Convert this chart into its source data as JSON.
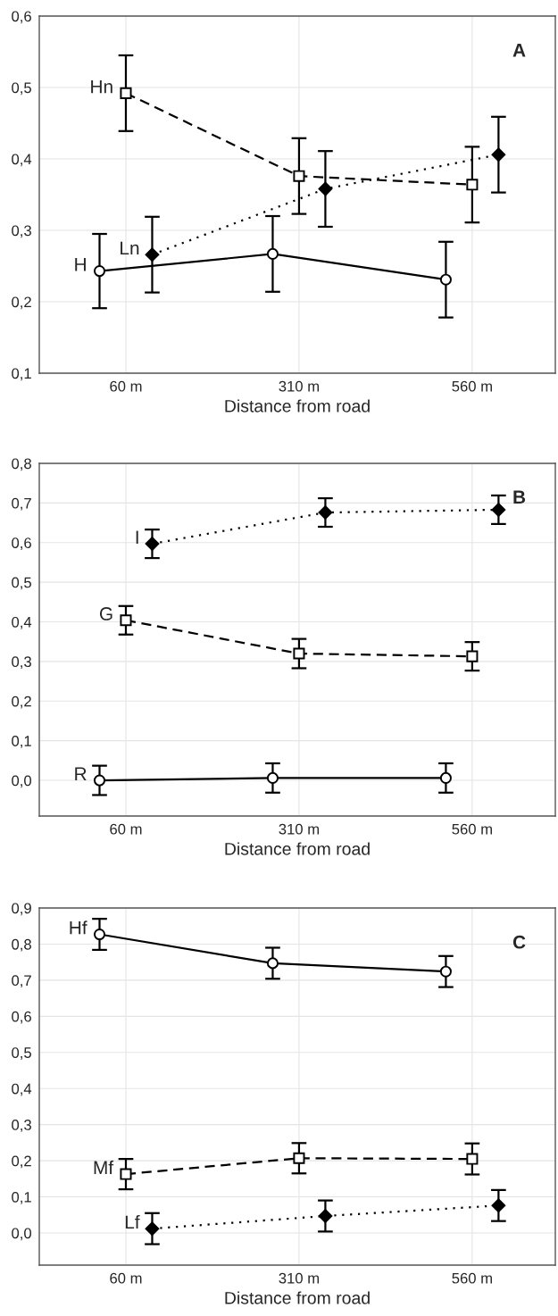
{
  "chart_data": [
    {
      "type": "line",
      "annotations": [
        "A"
      ],
      "xlabel": "Distance from road",
      "xlim": [
        -65,
        680
      ],
      "xticks": [
        {
          "value": 60,
          "label": "60 m"
        },
        {
          "value": 310,
          "label": "310 m"
        },
        {
          "value": 560,
          "label": "560 m"
        }
      ],
      "ylim": [
        0.1,
        0.6
      ],
      "yticks": [
        {
          "value": 0.1,
          "label": "0,1"
        },
        {
          "value": 0.2,
          "label": "0,2"
        },
        {
          "value": 0.3,
          "label": "0,3"
        },
        {
          "value": 0.4,
          "label": "0,4"
        },
        {
          "value": 0.5,
          "label": "0,5"
        },
        {
          "value": 0.6,
          "label": "0,6"
        }
      ],
      "grid": true,
      "series": [
        {
          "name": "H",
          "color": "#000000",
          "marker": "circle",
          "line_style": "solid",
          "x": [
            22,
            272,
            522
          ],
          "values": [
            0.243,
            0.267,
            0.231
          ],
          "errors": [
            0.052,
            0.053,
            0.053
          ]
        },
        {
          "name": "Hn",
          "color": "#000000",
          "marker": "square",
          "line_style": "dashed",
          "x": [
            60,
            310,
            560
          ],
          "values": [
            0.492,
            0.376,
            0.364
          ],
          "errors": [
            0.053,
            0.053,
            0.053
          ]
        },
        {
          "name": "Ln",
          "color": "#000000",
          "marker": "diamond",
          "line_style": "dotted",
          "x": [
            98,
            348,
            598
          ],
          "values": [
            0.266,
            0.358,
            0.406
          ],
          "errors": [
            0.053,
            0.053,
            0.053
          ]
        }
      ]
    },
    {
      "type": "line",
      "annotations": [
        "B"
      ],
      "xlabel": "Distance from road",
      "xlim": [
        -65,
        680
      ],
      "xticks": [
        {
          "value": 60,
          "label": "60 m"
        },
        {
          "value": 310,
          "label": "310 m"
        },
        {
          "value": 560,
          "label": "560 m"
        }
      ],
      "ylim": [
        -0.09,
        0.8
      ],
      "yticks": [
        {
          "value": 0.0,
          "label": "0,0"
        },
        {
          "value": 0.1,
          "label": "0,1"
        },
        {
          "value": 0.2,
          "label": "0,2"
        },
        {
          "value": 0.3,
          "label": "0,3"
        },
        {
          "value": 0.4,
          "label": "0,4"
        },
        {
          "value": 0.5,
          "label": "0,5"
        },
        {
          "value": 0.6,
          "label": "0,6"
        },
        {
          "value": 0.7,
          "label": "0,7"
        },
        {
          "value": 0.8,
          "label": "0,8"
        }
      ],
      "grid": true,
      "series": [
        {
          "name": "R",
          "color": "#000000",
          "marker": "circle",
          "line_style": "solid",
          "x": [
            22,
            272,
            522
          ],
          "values": [
            0.0,
            0.006,
            0.006
          ],
          "errors": [
            0.037,
            0.037,
            0.037
          ]
        },
        {
          "name": "G",
          "color": "#000000",
          "marker": "square",
          "line_style": "dashed",
          "x": [
            60,
            310,
            560
          ],
          "values": [
            0.404,
            0.32,
            0.313
          ],
          "errors": [
            0.036,
            0.037,
            0.036
          ]
        },
        {
          "name": "I",
          "color": "#000000",
          "marker": "diamond",
          "line_style": "dotted",
          "x": [
            98,
            348,
            598
          ],
          "values": [
            0.597,
            0.676,
            0.683
          ],
          "errors": [
            0.036,
            0.036,
            0.036
          ]
        }
      ]
    },
    {
      "type": "line",
      "annotations": [
        "C"
      ],
      "xlabel": "Distance from road",
      "xlim": [
        -65,
        680
      ],
      "xticks": [
        {
          "value": 60,
          "label": "60 m"
        },
        {
          "value": 310,
          "label": "310 m"
        },
        {
          "value": 560,
          "label": "560 m"
        }
      ],
      "ylim": [
        -0.089,
        0.9
      ],
      "yticks": [
        {
          "value": 0.0,
          "label": "0,0"
        },
        {
          "value": 0.1,
          "label": "0,1"
        },
        {
          "value": 0.2,
          "label": "0,2"
        },
        {
          "value": 0.3,
          "label": "0,3"
        },
        {
          "value": 0.4,
          "label": "0,4"
        },
        {
          "value": 0.5,
          "label": "0,5"
        },
        {
          "value": 0.6,
          "label": "0,6"
        },
        {
          "value": 0.7,
          "label": "0,7"
        },
        {
          "value": 0.8,
          "label": "0,8"
        },
        {
          "value": 0.9,
          "label": "0,9"
        }
      ],
      "grid": true,
      "series": [
        {
          "name": "Hf",
          "color": "#000000",
          "marker": "circle",
          "line_style": "solid",
          "x": [
            22,
            272,
            522
          ],
          "values": [
            0.827,
            0.747,
            0.724
          ],
          "errors": [
            0.043,
            0.043,
            0.043
          ]
        },
        {
          "name": "Mf",
          "color": "#000000",
          "marker": "square",
          "line_style": "dashed",
          "x": [
            60,
            310,
            560
          ],
          "values": [
            0.163,
            0.207,
            0.205
          ],
          "errors": [
            0.042,
            0.042,
            0.043
          ]
        },
        {
          "name": "Lf",
          "color": "#000000",
          "marker": "diamond",
          "line_style": "dotted",
          "x": [
            98,
            348,
            598
          ],
          "values": [
            0.012,
            0.047,
            0.076
          ],
          "errors": [
            0.043,
            0.043,
            0.043
          ]
        }
      ]
    }
  ]
}
